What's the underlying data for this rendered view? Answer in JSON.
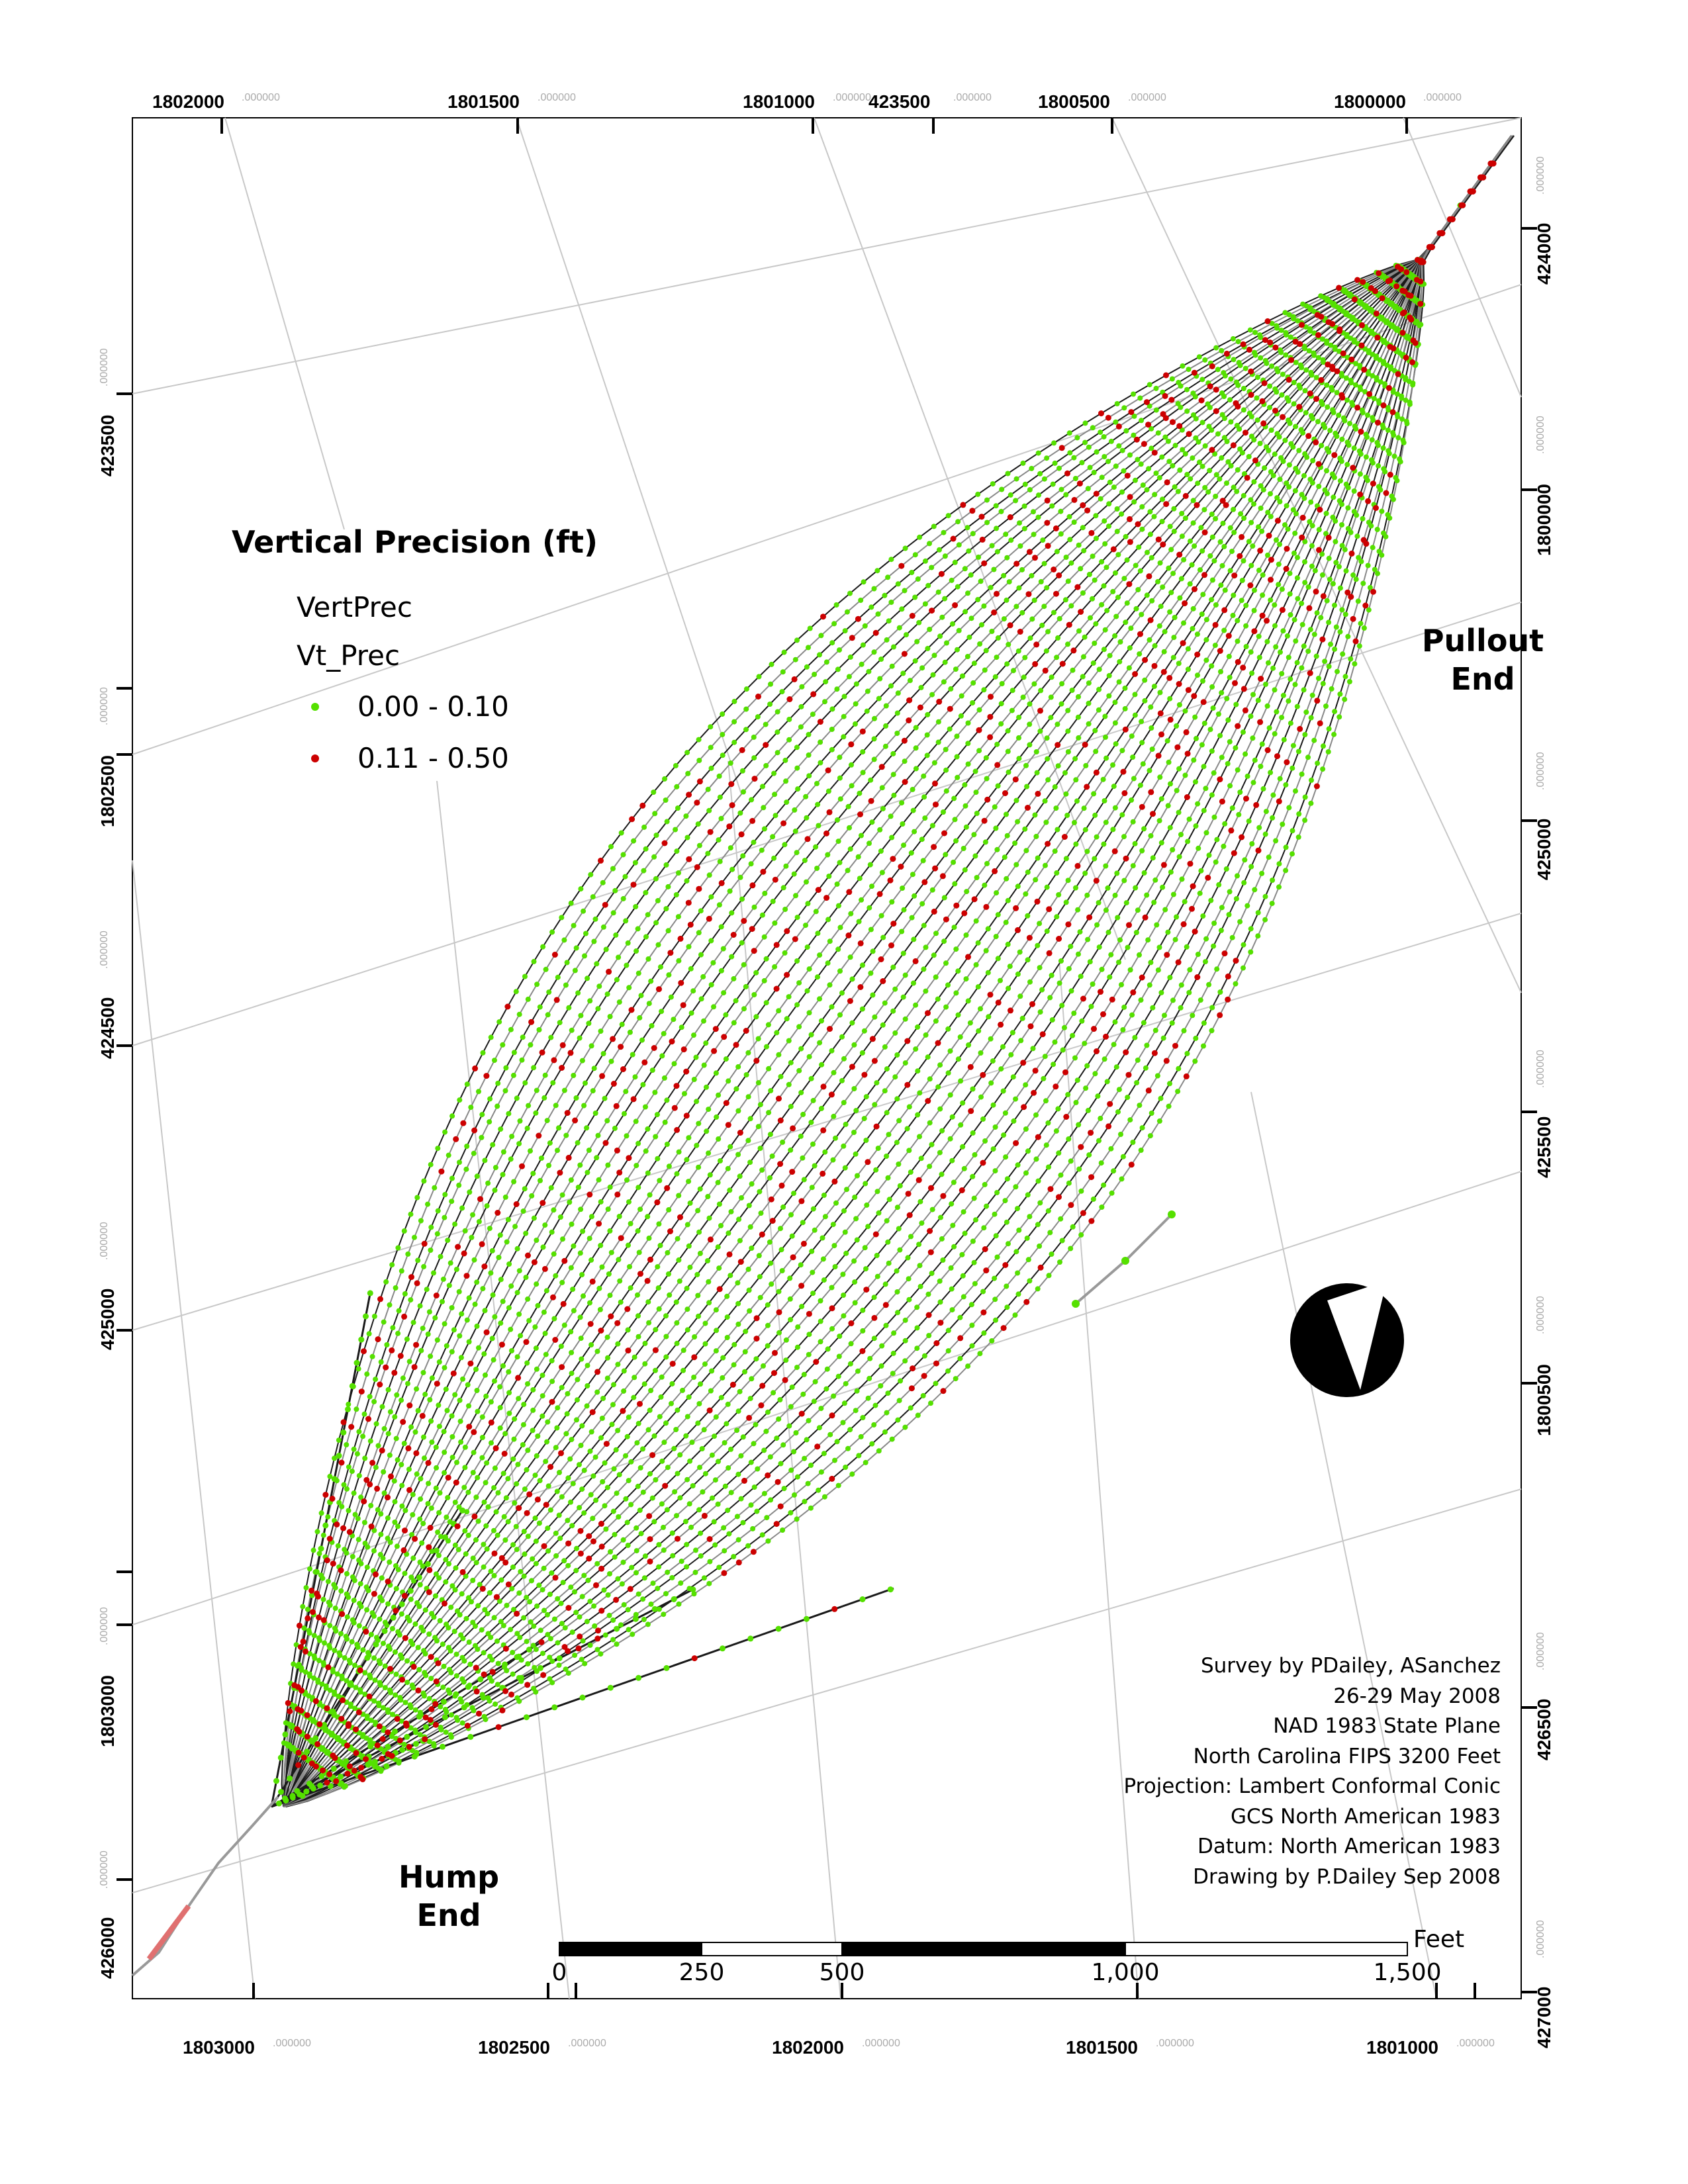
{
  "legend": {
    "title": "Vertical Precision (ft)",
    "field": "VertPrec",
    "subfield": "Vt_Prec",
    "classes": [
      {
        "label": "0.00 - 0.10",
        "color": "#55e000"
      },
      {
        "label": "0.11 - 0.50",
        "color": "#cc0000"
      }
    ]
  },
  "ends": {
    "pullout": [
      "Pullout",
      "End"
    ],
    "hump": [
      "Hump",
      "End"
    ]
  },
  "credits": [
    "Survey by PDailey, ASanchez",
    "26-29 May 2008",
    "NAD 1983 State Plane",
    "North Carolina FIPS 3200 Feet",
    "Projection: Lambert Conformal Conic",
    "GCS North American 1983",
    "Datum: North American 1983",
    "Drawing by P.Dailey Sep 2008"
  ],
  "scale_bar": {
    "unit": "Feet",
    "labels": [
      "0",
      "250",
      "500",
      "1,000",
      "1,500"
    ]
  },
  "grid_labels": {
    "top": [
      "1802000",
      "1801500",
      "1801000",
      "423500",
      "1800500",
      "1800000"
    ],
    "bottom": [
      "1803000",
      "1802500",
      "1802000",
      "1801500",
      "1801000"
    ],
    "left": [
      "423500",
      "1802500",
      "424500",
      "425000",
      "1803000",
      "426000"
    ],
    "right": [
      "424000",
      "1800000",
      "425000",
      "425500",
      "1800500",
      "426500",
      "427000"
    ],
    "decimal": ".000000"
  },
  "colors": {
    "low": "#55e000",
    "high": "#cc0000",
    "track": "#1a1a1a",
    "grid": "#c8c8c8"
  }
}
